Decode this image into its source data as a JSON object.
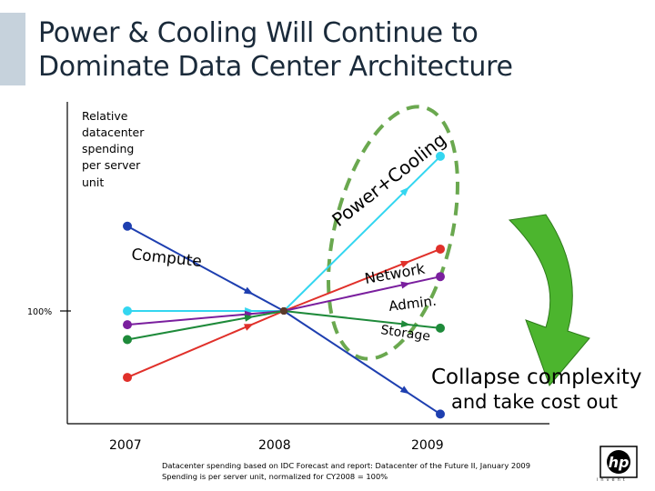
{
  "title": {
    "line1": "Power & Cooling Will Continue to",
    "line2": "Dominate Data Center Architecture"
  },
  "footnote": {
    "line1": "Datacenter spending based on IDC Forecast and report: Datacenter of the Future II, January 2009",
    "line2": "Spending is per server unit, normalized for CY2008 = 100%"
  },
  "logo": {
    "mark": "hp",
    "wordmark": "invent"
  },
  "annotation": {
    "collapse_line1": "Collapse complexity",
    "collapse_line2": "and take cost out"
  },
  "colors": {
    "compute": "#1e3fb0",
    "power_cooling": "#33d6f0",
    "network": "#e0302a",
    "admin": "#7a1f9e",
    "storage": "#1e8a3a",
    "arrow_green": "#4cb52e",
    "dashed_ellipse": "#6aa84f"
  },
  "chart_data": {
    "type": "line",
    "ylabel_lines": [
      "Relative",
      "datacenter",
      "spending",
      "per server",
      "unit"
    ],
    "x": [
      "2007",
      "2008",
      "2009"
    ],
    "y_ticks": [
      "100%"
    ],
    "series": [
      {
        "name": "Compute",
        "values": [
          174,
          100,
          10
        ]
      },
      {
        "name": "Power+Cooling",
        "values": [
          100,
          100,
          235
        ]
      },
      {
        "name": "Network",
        "values": [
          42,
          100,
          154
        ]
      },
      {
        "name": "Admin.",
        "values": [
          88,
          100,
          130
        ]
      },
      {
        "name": "Storage",
        "values": [
          75,
          100,
          85
        ]
      }
    ],
    "ylim": [
      0,
      280
    ]
  }
}
